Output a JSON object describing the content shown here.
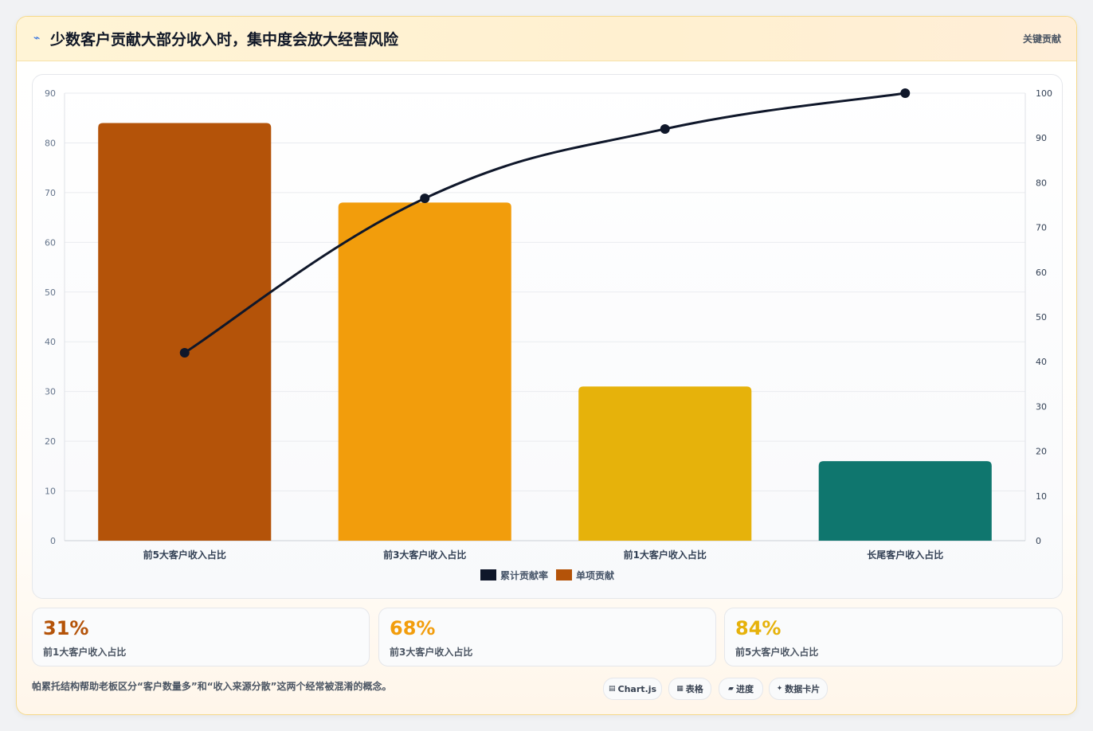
{
  "header": {
    "icon": "lightning-icon",
    "title": "少数客户贡献大部分收入时，集中度会放大经营风险",
    "tag": "关键贡献"
  },
  "chart_data": {
    "type": "bar",
    "categories": [
      "前5大客户收入占比",
      "前3大客户收入占比",
      "前1大客户收入占比",
      "长尾客户收入占比"
    ],
    "series": [
      {
        "name": "单项贡献",
        "type": "bar",
        "axis": "left",
        "values": [
          84,
          68,
          31,
          16
        ]
      },
      {
        "name": "累计贡献率",
        "type": "line",
        "axis": "right",
        "values": [
          42,
          76.5,
          92,
          100
        ]
      }
    ],
    "bar_colors": [
      "#b45309",
      "#f29d0c",
      "#e6b20b",
      "#0f766e"
    ],
    "line_color": "#0f172a",
    "yticks_left": [
      0,
      10,
      20,
      30,
      40,
      50,
      60,
      70,
      80,
      90
    ],
    "yticks_right": [
      0,
      10,
      20,
      30,
      40,
      50,
      60,
      70,
      80,
      90,
      100
    ],
    "ylim_left": [
      0,
      90
    ],
    "ylim_right": [
      0,
      100
    ],
    "legend": [
      {
        "label": "累计贡献率",
        "color": "#0f172a"
      },
      {
        "label": "单项贡献",
        "color": "#b45309"
      }
    ],
    "legend_position": "bottom",
    "grid": true
  },
  "stats": [
    {
      "value": "31%",
      "label": "前1大客户收入占比",
      "color": "#b45309"
    },
    {
      "value": "68%",
      "label": "前3大客户收入占比",
      "color": "#f29d0c"
    },
    {
      "value": "84%",
      "label": "前5大客户收入占比",
      "color": "#e6b20b"
    }
  ],
  "footer": {
    "note": "帕累托结构帮助老板区分“客户数量多”和“收入来源分散”这两个经常被混淆的概念。",
    "pills": [
      {
        "icon": "chart-icon",
        "glyph": "▤",
        "label": "Chart.js"
      },
      {
        "icon": "table-icon",
        "glyph": "▦",
        "label": "表格"
      },
      {
        "icon": "progress-icon",
        "glyph": "▰",
        "label": "进度"
      },
      {
        "icon": "sparkle-icon",
        "glyph": "✦",
        "label": "数据卡片"
      }
    ]
  }
}
